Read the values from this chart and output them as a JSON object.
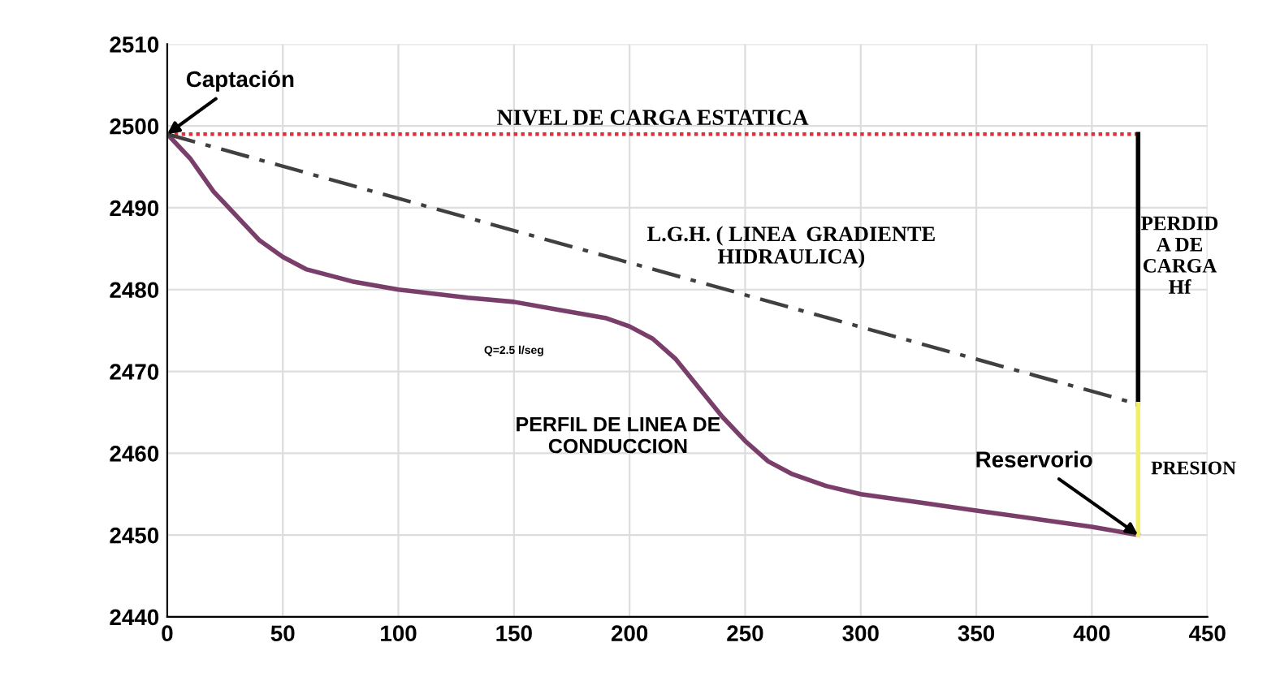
{
  "chart_data": {
    "type": "line",
    "xlim": [
      0,
      450
    ],
    "xticks": [
      0,
      50,
      100,
      150,
      200,
      250,
      300,
      350,
      400,
      450
    ],
    "ylim": [
      2440,
      2510
    ],
    "yticks": [
      2440,
      2450,
      2460,
      2470,
      2480,
      2490,
      2500,
      2510
    ],
    "grid": true,
    "legend": false,
    "marker": "none",
    "series": [
      {
        "color": "#7a3e6a",
        "line_style": "solid",
        "x": [
          0,
          10,
          20,
          30,
          40,
          50,
          60,
          80,
          100,
          130,
          150,
          170,
          190,
          200,
          210,
          220,
          230,
          240,
          250,
          260,
          270,
          285,
          300,
          325,
          350,
          375,
          400,
          420
        ],
        "values": [
          2499,
          2496,
          2492,
          2489,
          2486,
          2484,
          2482.5,
          2481,
          2480,
          2479,
          2478.5,
          2477.5,
          2476.5,
          2475.5,
          2474,
          2471.5,
          2468,
          2464.5,
          2461.5,
          2459,
          2457.5,
          2456,
          2455,
          2454,
          2453,
          2452,
          2451,
          2450
        ]
      },
      {
        "color": "#e0303a",
        "line_style": "dotted",
        "x": [
          0,
          420
        ],
        "values": [
          2499,
          2499
        ]
      },
      {
        "color": "#404040",
        "line_style": "dashed",
        "x": [
          0,
          420
        ],
        "values": [
          2499,
          2466
        ]
      },
      {
        "color": "#000000",
        "line_style": "solid",
        "x": [
          420,
          420
        ],
        "values": [
          2499,
          2466
        ]
      },
      {
        "color": "#f0f060",
        "line_style": "solid",
        "x": [
          420,
          420
        ],
        "values": [
          2466,
          2450
        ]
      }
    ],
    "annotations": [
      {
        "text": "Captación",
        "x": 0,
        "y": 2499
      },
      {
        "text": "NIVEL DE CARGA ESTATICA",
        "x": 210,
        "y": 2499
      },
      {
        "text": "L.G.H. ( LINEA  GRADIENTE\nHIDRAULICA)",
        "x": 300,
        "y": 2475.4
      },
      {
        "text": "PERFIL DE LINEA DE\nCONDUCCION",
        "x": 240,
        "y": 2464.5
      },
      "Q=2.5 l/seg",
      {
        "text": "Reservorio",
        "x": 420,
        "y": 2450
      },
      "PERDID\nA DE\nCARGA\nHf",
      "PRESION"
    ]
  }
}
